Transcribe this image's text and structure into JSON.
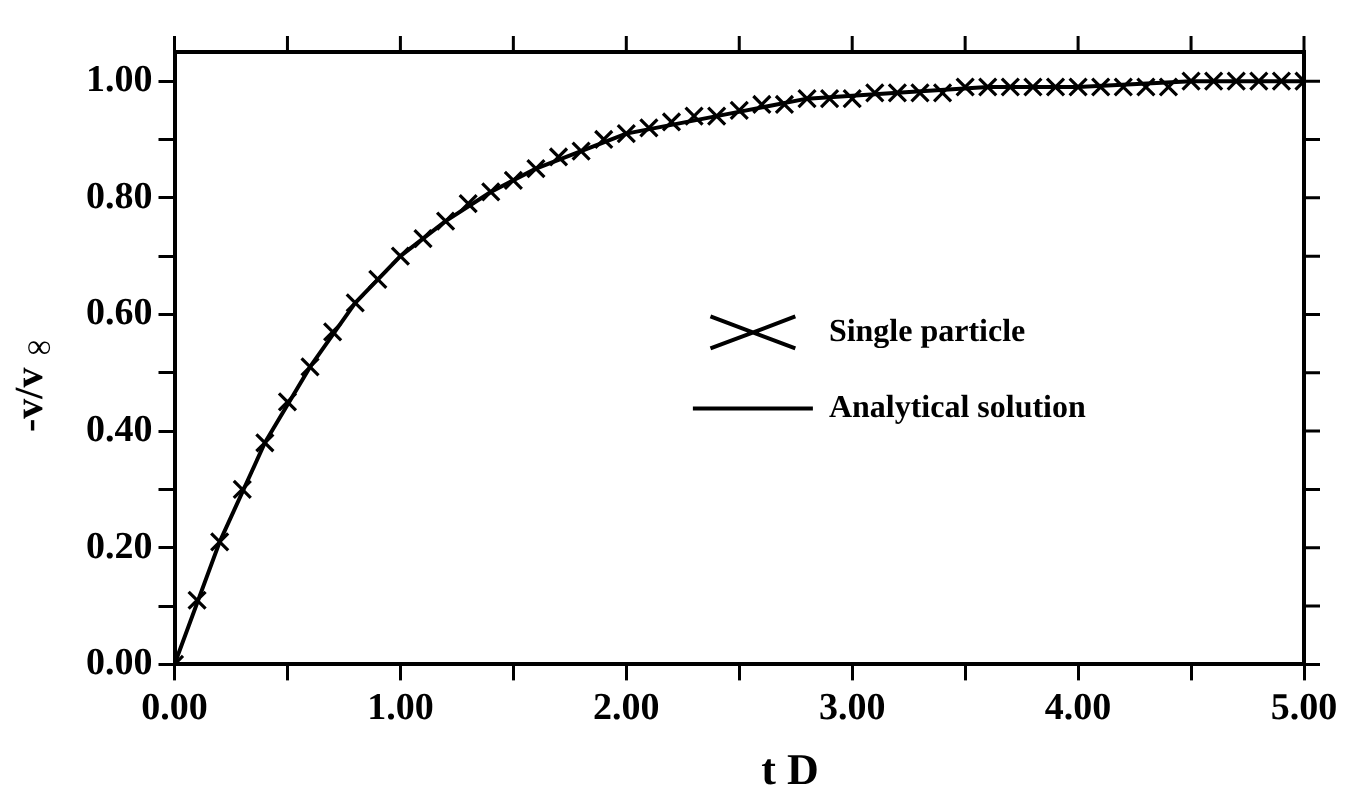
{
  "chart_data": {
    "type": "scatter",
    "xlabel": "t D",
    "ylabel": "-v/v$_{∞}$",
    "xlim": [
      0,
      5
    ],
    "ylim": [
      0,
      1.05
    ],
    "xticks": [
      {
        "value": 0,
        "label": "0.00"
      },
      {
        "value": 0.5,
        "label": null
      },
      {
        "value": 1,
        "label": "1.00"
      },
      {
        "value": 1.5,
        "label": null
      },
      {
        "value": 2,
        "label": "2.00"
      },
      {
        "value": 2.5,
        "label": null
      },
      {
        "value": 3,
        "label": "3.00"
      },
      {
        "value": 3.5,
        "label": null
      },
      {
        "value": 4,
        "label": "4.00"
      },
      {
        "value": 4.5,
        "label": null
      },
      {
        "value": 5,
        "label": "5.00"
      }
    ],
    "yticks": [
      {
        "value": 0,
        "label": "0.00"
      },
      {
        "value": 0.1,
        "label": null
      },
      {
        "value": 0.2,
        "label": "0.20"
      },
      {
        "value": 0.3,
        "label": null
      },
      {
        "value": 0.4,
        "label": "0.40"
      },
      {
        "value": 0.5,
        "label": null
      },
      {
        "value": 0.6,
        "label": "0.60"
      },
      {
        "value": 0.7,
        "label": null
      },
      {
        "value": 0.8,
        "label": "0.80"
      },
      {
        "value": 0.9,
        "label": null
      },
      {
        "value": 1,
        "label": "1.00"
      }
    ],
    "legend": "right",
    "grid": false,
    "series": [
      {
        "name": "Single particle",
        "type": "scatter",
        "marker": "cross",
        "color": "#000000",
        "x": [
          0,
          0.1,
          0.2,
          0.3,
          0.4,
          0.5,
          0.6,
          0.7,
          0.8,
          0.9,
          1,
          1.1,
          1.2,
          1.3,
          1.4,
          1.5,
          1.6,
          1.7,
          1.8,
          1.9,
          2,
          2.1,
          2.2,
          2.3,
          2.4,
          2.5,
          2.6,
          2.7,
          2.8,
          2.9,
          3,
          3.1,
          3.2,
          3.3,
          3.4,
          3.5,
          3.6,
          3.7,
          3.8,
          3.9,
          4,
          4.1,
          4.2,
          4.3,
          4.4,
          4.5,
          4.6,
          4.7,
          4.8,
          4.9,
          5
        ],
        "values": [
          0,
          0.11,
          0.21,
          0.3,
          0.38,
          0.45,
          0.51,
          0.57,
          0.62,
          0.66,
          0.7,
          0.73,
          0.76,
          0.79,
          0.81,
          0.83,
          0.85,
          0.87,
          0.88,
          0.9,
          0.91,
          0.92,
          0.93,
          0.94,
          0.94,
          0.95,
          0.96,
          0.96,
          0.97,
          0.97,
          0.97,
          0.98,
          0.98,
          0.98,
          0.98,
          0.99,
          0.99,
          0.99,
          0.99,
          0.99,
          0.99,
          0.99,
          0.99,
          0.99,
          0.99,
          1,
          1,
          1,
          1,
          1,
          1
        ]
      },
      {
        "name": "Analytical solution",
        "type": "line",
        "marker": "none",
        "line_style": "solid",
        "color": "#000000",
        "x": [
          0,
          0.2,
          0.4,
          0.6,
          0.8,
          1,
          1.2,
          1.4,
          1.6,
          1.8,
          2,
          2.4,
          2.8,
          3.2,
          3.6,
          4,
          4.5,
          5
        ],
        "values": [
          0,
          0.21,
          0.38,
          0.51,
          0.62,
          0.7,
          0.76,
          0.81,
          0.85,
          0.88,
          0.91,
          0.94,
          0.97,
          0.98,
          0.99,
          0.99,
          1,
          1
        ]
      }
    ]
  }
}
